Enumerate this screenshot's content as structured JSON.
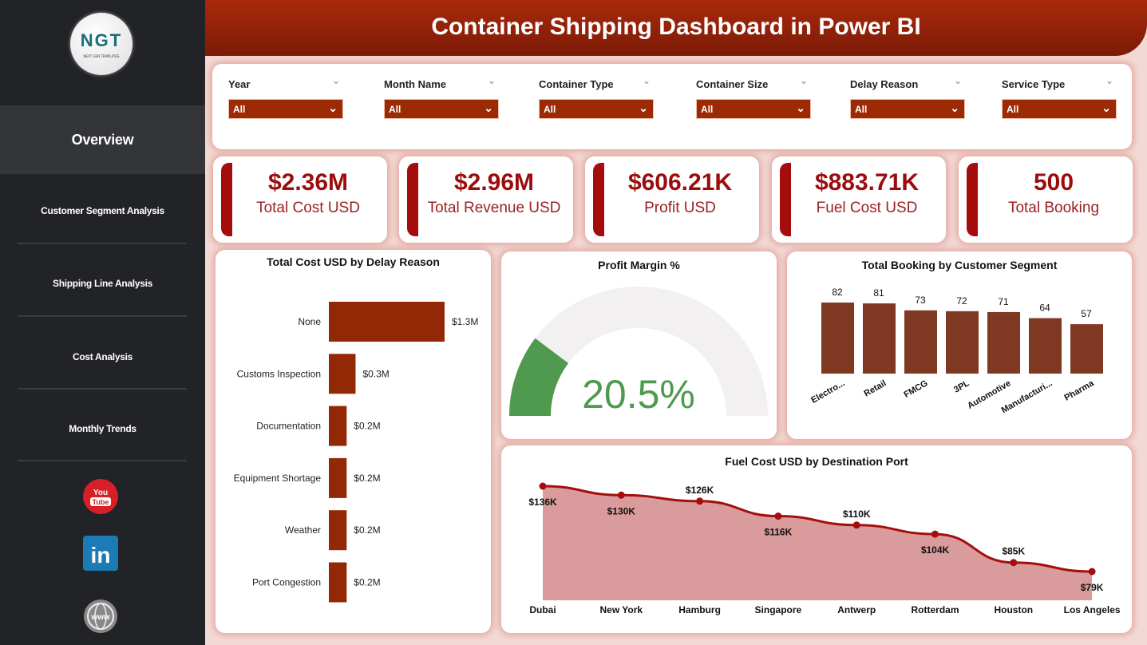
{
  "header": {
    "title": "Container Shipping Dashboard in Power BI"
  },
  "sidebar": {
    "logo_text": "NGT",
    "logo_sub": "NEXT GEN TEMPLATES",
    "items": [
      {
        "label": "Overview"
      },
      {
        "label": "Customer Segment Analysis"
      },
      {
        "label": "Shipping Line Analysis"
      },
      {
        "label": "Cost Analysis"
      },
      {
        "label": "Monthly Trends"
      }
    ],
    "social": [
      "youtube-icon",
      "linkedin-icon",
      "globe-icon"
    ]
  },
  "filters": [
    {
      "label": "Year",
      "value": "All"
    },
    {
      "label": "Month Name",
      "value": "All"
    },
    {
      "label": "Container Type",
      "value": "All"
    },
    {
      "label": "Container Size",
      "value": "All"
    },
    {
      "label": "Delay Reason",
      "value": "All"
    },
    {
      "label": "Service Type",
      "value": "All"
    }
  ],
  "kpis": [
    {
      "value": "$2.36M",
      "label": "Total Cost USD"
    },
    {
      "value": "$2.96M",
      "label": "Total Revenue USD"
    },
    {
      "value": "$606.21K",
      "label": "Profit USD"
    },
    {
      "value": "$883.71K",
      "label": "Fuel Cost USD"
    },
    {
      "value": "500",
      "label": "Total Booking"
    }
  ],
  "colors": {
    "accent": "#9b2a05",
    "bar": "#922805",
    "segment_bar": "#7f3822",
    "gauge": "#4f9a4f",
    "area": "#d99b9b",
    "line": "#a30e0e"
  },
  "chart_data": [
    {
      "type": "bar",
      "orientation": "horizontal",
      "title": "Total Cost USD by Delay Reason",
      "categories": [
        "None",
        "Customs Inspection",
        "Documentation",
        "Equipment Shortage",
        "Weather",
        "Port Congestion"
      ],
      "values": [
        1.3,
        0.3,
        0.2,
        0.2,
        0.2,
        0.2
      ],
      "labels": [
        "$1.3M",
        "$0.3M",
        "$0.2M",
        "$0.2M",
        "$0.2M",
        "$0.2M"
      ],
      "unit": "M USD"
    },
    {
      "type": "gauge",
      "title": "Profit Margin %",
      "value": 20.5,
      "label": "20.5%",
      "range": [
        0,
        100
      ]
    },
    {
      "type": "bar",
      "title": "Total Booking by Customer Segment",
      "categories": [
        "Electro...",
        "Retail",
        "FMCG",
        "3PL",
        "Automotive",
        "Manufacturi...",
        "Pharma"
      ],
      "values": [
        82,
        81,
        73,
        72,
        71,
        64,
        57
      ]
    },
    {
      "type": "area",
      "title": "Fuel Cost USD by Destination Port",
      "categories": [
        "Dubai",
        "New York",
        "Hamburg",
        "Singapore",
        "Antwerp",
        "Rotterdam",
        "Houston",
        "Los Angeles"
      ],
      "values": [
        136,
        130,
        126,
        116,
        110,
        104,
        85,
        79
      ],
      "labels": [
        "$136K",
        "$130K",
        "$126K",
        "$116K",
        "$110K",
        "$104K",
        "$85K",
        "$79K"
      ],
      "unit": "K USD"
    }
  ]
}
